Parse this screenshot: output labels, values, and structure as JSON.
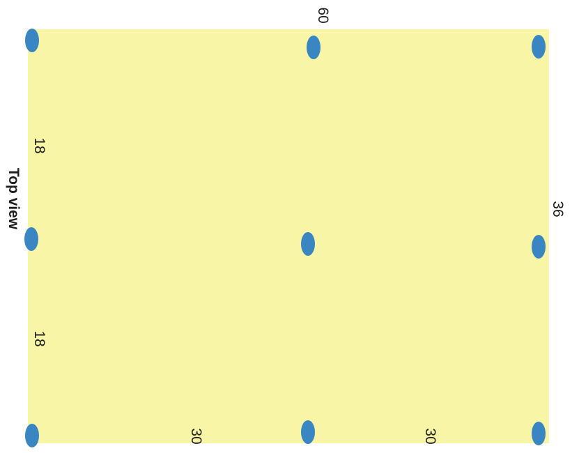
{
  "title": "Top view",
  "dimensions": {
    "top": "60",
    "right": "36",
    "left_upper": "18",
    "left_lower": "18",
    "bottom_left": "30",
    "bottom_right": "30"
  },
  "colors": {
    "plate": "#f8f6a6",
    "support_point": "#3a86c2"
  }
}
